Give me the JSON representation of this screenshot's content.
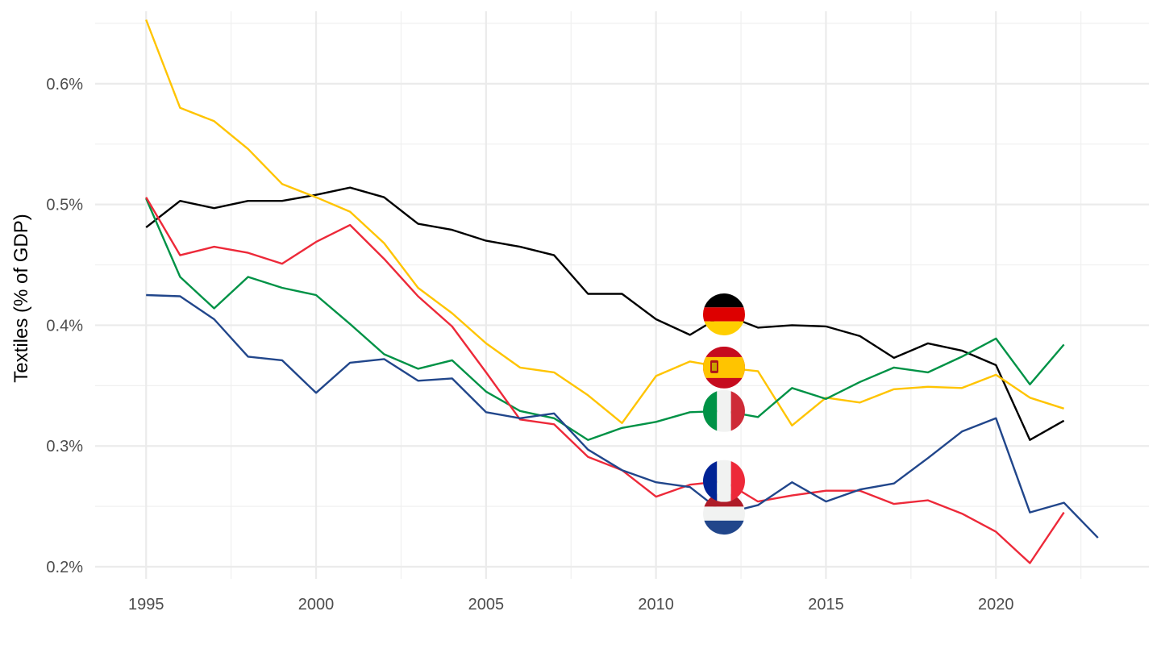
{
  "chart_data": {
    "type": "line",
    "title": "",
    "xlabel": "",
    "ylabel": "Textiles (% of GDP)",
    "xlim": [
      1993.5,
      2024.5
    ],
    "ylim": [
      0.19,
      0.66
    ],
    "x_ticks": [
      1995,
      2000,
      2005,
      2010,
      2015,
      2020
    ],
    "x_tick_labels": [
      "1995",
      "2000",
      "2005",
      "2010",
      "2015",
      "2020"
    ],
    "y_ticks": [
      0.2,
      0.3,
      0.4,
      0.5,
      0.6
    ],
    "y_tick_labels": [
      "0.2%",
      "0.3%",
      "0.4%",
      "0.5%",
      "0.6%"
    ],
    "grid": true,
    "legend": "none (flag markers at 2012)",
    "flag_year": 2012,
    "series": [
      {
        "key": "germany",
        "color": "#000000",
        "flag": "germany-flag",
        "x": [
          1995,
          1996,
          1997,
          1998,
          1999,
          2000,
          2001,
          2002,
          2003,
          2004,
          2005,
          2006,
          2007,
          2008,
          2009,
          2010,
          2011,
          2012,
          2013,
          2014,
          2015,
          2016,
          2017,
          2018,
          2019,
          2020,
          2021,
          2022
        ],
        "values": [
          0.481,
          0.503,
          0.497,
          0.503,
          0.503,
          0.508,
          0.514,
          0.506,
          0.484,
          0.479,
          0.47,
          0.465,
          0.458,
          0.426,
          0.426,
          0.405,
          0.392,
          0.409,
          0.398,
          0.4,
          0.399,
          0.391,
          0.373,
          0.385,
          0.379,
          0.367,
          0.305,
          0.321
        ]
      },
      {
        "key": "spain",
        "color": "#FFC400",
        "flag": "spain-flag",
        "x": [
          1995,
          1996,
          1997,
          1998,
          1999,
          2000,
          2001,
          2002,
          2003,
          2004,
          2005,
          2006,
          2007,
          2008,
          2009,
          2010,
          2011,
          2012,
          2013,
          2014,
          2015,
          2016,
          2017,
          2018,
          2019,
          2020,
          2021,
          2022
        ],
        "values": [
          0.653,
          0.58,
          0.569,
          0.546,
          0.517,
          0.506,
          0.494,
          0.468,
          0.431,
          0.41,
          0.385,
          0.365,
          0.361,
          0.342,
          0.319,
          0.358,
          0.37,
          0.365,
          0.362,
          0.317,
          0.34,
          0.336,
          0.347,
          0.349,
          0.348,
          0.359,
          0.34,
          0.331
        ]
      },
      {
        "key": "italy",
        "color": "#009246",
        "flag": "italy-flag",
        "x": [
          1995,
          1996,
          1997,
          1998,
          1999,
          2000,
          2001,
          2002,
          2003,
          2004,
          2005,
          2006,
          2007,
          2008,
          2009,
          2010,
          2011,
          2012,
          2013,
          2014,
          2015,
          2016,
          2017,
          2018,
          2019,
          2020,
          2021,
          2022
        ],
        "values": [
          0.505,
          0.44,
          0.414,
          0.44,
          0.431,
          0.425,
          0.401,
          0.376,
          0.364,
          0.371,
          0.345,
          0.329,
          0.323,
          0.305,
          0.315,
          0.32,
          0.328,
          0.329,
          0.324,
          0.348,
          0.339,
          0.353,
          0.365,
          0.361,
          0.374,
          0.389,
          0.351,
          0.384
        ]
      },
      {
        "key": "france",
        "color": "#ED2939",
        "flag": "france-flag",
        "x": [
          1995,
          1996,
          1997,
          1998,
          1999,
          2000,
          2001,
          2002,
          2003,
          2004,
          2005,
          2006,
          2007,
          2008,
          2009,
          2010,
          2011,
          2012,
          2013,
          2014,
          2015,
          2016,
          2017,
          2018,
          2019,
          2020,
          2021,
          2022
        ],
        "values": [
          0.506,
          0.458,
          0.465,
          0.46,
          0.451,
          0.469,
          0.483,
          0.455,
          0.424,
          0.399,
          0.361,
          0.322,
          0.318,
          0.291,
          0.28,
          0.258,
          0.268,
          0.271,
          0.254,
          0.259,
          0.263,
          0.263,
          0.252,
          0.255,
          0.244,
          0.229,
          0.203,
          0.245
        ]
      },
      {
        "key": "netherlands",
        "color": "#21468B",
        "flag": "netherlands-flag",
        "x": [
          1995,
          1996,
          1997,
          1998,
          1999,
          2000,
          2001,
          2002,
          2003,
          2004,
          2005,
          2006,
          2007,
          2008,
          2009,
          2010,
          2011,
          2012,
          2013,
          2014,
          2015,
          2016,
          2017,
          2018,
          2019,
          2020,
          2021,
          2022,
          2023
        ],
        "values": [
          0.425,
          0.424,
          0.405,
          0.374,
          0.371,
          0.344,
          0.369,
          0.372,
          0.354,
          0.356,
          0.328,
          0.323,
          0.327,
          0.297,
          0.28,
          0.27,
          0.266,
          0.244,
          0.251,
          0.27,
          0.254,
          0.264,
          0.269,
          0.29,
          0.312,
          0.323,
          0.245,
          0.253,
          0.224
        ]
      }
    ],
    "flags": [
      {
        "key": "germany",
        "y": 0.409
      },
      {
        "key": "spain",
        "y": 0.365
      },
      {
        "key": "italy",
        "y": 0.329
      },
      {
        "key": "france",
        "y": 0.271
      },
      {
        "key": "netherlands",
        "y": 0.244
      }
    ]
  }
}
